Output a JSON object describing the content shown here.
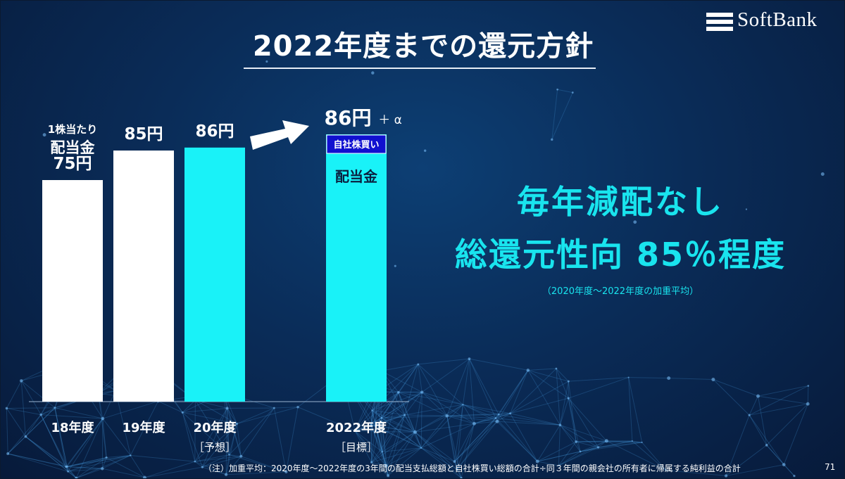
{
  "slide": {
    "title": "2022年度までの還元方針",
    "logo_text": "SoftBank",
    "message_line1": "毎年減配なし",
    "message_line2": "総還元性向 85％程度",
    "message_note": "（2020年度～2022年度の加重平均）",
    "footnote": "（注）加重平均：2020年度～2022年度の3年間の配当支払総額と自社株買い総額の合計÷同３年間の親会社の所有者に帰属する純利益の合計",
    "page_number": "71"
  },
  "colors": {
    "accent_cyan": "#19e4ee",
    "bar_white": "#ffffff",
    "buyback_blue": "#1010d0"
  },
  "chart_data": {
    "type": "bar",
    "unit_label_line1": "1株当たり",
    "unit_label_line2": "配当金",
    "categories": [
      "18年度",
      "19年度",
      "20年度",
      "2022年度"
    ],
    "category_sublabels": [
      "",
      "",
      "［予想］",
      "［目標］"
    ],
    "values": [
      75,
      85,
      86,
      86
    ],
    "value_labels": [
      "75円",
      "85円",
      "86円",
      "86円"
    ],
    "value_label_suffix_2022": "＋ α",
    "bar_colors": [
      "#ffffff",
      "#ffffff",
      "#19f2f8",
      "#19f2f8"
    ],
    "stacked_segment_2022": {
      "name": "自社株買い",
      "color": "#1010d0"
    },
    "dividend_segment_2022_label": "配当金",
    "ylim": [
      0,
      100
    ],
    "grid": false,
    "legend": "none"
  }
}
